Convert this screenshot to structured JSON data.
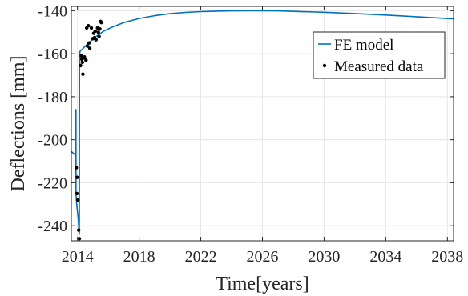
{
  "chart_data": {
    "type": "line",
    "xlabel": "Time[years]",
    "ylabel": "Deflections [mm]",
    "xlim": [
      2013.6,
      2038.4
    ],
    "ylim": [
      -247,
      -138
    ],
    "xticks": [
      2014,
      2018,
      2022,
      2026,
      2030,
      2034,
      2038
    ],
    "yticks": [
      -240,
      -220,
      -200,
      -180,
      -160,
      -140
    ],
    "grid": true,
    "legend_position": "top-right",
    "series": [
      {
        "name": "FE model",
        "kind": "line",
        "color": "#0072BD",
        "x": [
          2013.6,
          2013.85,
          2013.88,
          2013.88,
          2013.9,
          2013.9,
          2013.95,
          2014.05,
          2014.1,
          2014.12,
          2014.13,
          2014.15,
          2014.17,
          2014.2,
          2014.3,
          2014.5,
          2014.8,
          2015.2,
          2015.7,
          2016.3,
          2017.0,
          2018.0,
          2019.0,
          2020.0,
          2021.0,
          2022.0,
          2023.0,
          2024.0,
          2025.0,
          2026.0,
          2027.0,
          2028.0,
          2030.0,
          2032.0,
          2034.0,
          2036.0,
          2038.4
        ],
        "y": [
          -205.5,
          -207.0,
          -207.2,
          -186.0,
          -186.0,
          -225.0,
          -230.0,
          -237.0,
          -243.0,
          -244.0,
          -168.0,
          -159.0,
          -159.0,
          -158.5,
          -158.0,
          -156.5,
          -154.5,
          -152.0,
          -149.5,
          -147.5,
          -145.5,
          -143.6,
          -142.3,
          -141.4,
          -140.8,
          -140.4,
          -140.2,
          -140.1,
          -140.0,
          -140.0,
          -140.1,
          -140.3,
          -140.7,
          -141.3,
          -142.0,
          -142.8,
          -143.8
        ]
      },
      {
        "name": "Measured data",
        "kind": "scatter",
        "color": "#000000",
        "x": [
          2013.92,
          2013.97,
          2013.98,
          2014.02,
          2014.08,
          2014.12,
          2014.2,
          2014.25,
          2014.28,
          2014.32,
          2014.35,
          2014.4,
          2014.45,
          2014.55,
          2014.6,
          2014.65,
          2014.7,
          2014.75,
          2014.8,
          2014.9,
          2015.0,
          2015.05,
          2015.1,
          2015.15,
          2015.2,
          2015.3,
          2015.35,
          2015.4,
          2015.45,
          2015.5,
          2015.55
        ],
        "y": [
          -213.0,
          -225.0,
          -217.5,
          -228.0,
          -242.0,
          -246.0,
          -165.5,
          -161.0,
          -162.5,
          -164.0,
          -169.5,
          -162.0,
          -161.5,
          -163.0,
          -148.0,
          -156.5,
          -147.0,
          -155.0,
          -157.5,
          -148.0,
          -153.0,
          -150.5,
          -152.5,
          -149.5,
          -153.5,
          -148.0,
          -150.0,
          -152.0,
          -148.5,
          -145.0,
          -145.5
        ]
      }
    ]
  }
}
